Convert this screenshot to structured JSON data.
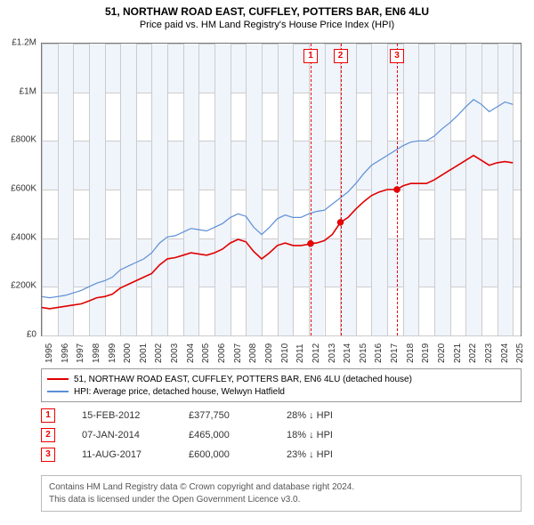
{
  "title": "51, NORTHAW ROAD EAST, CUFFLEY, POTTERS BAR, EN6 4LU",
  "subtitle": "Price paid vs. HM Land Registry's House Price Index (HPI)",
  "chart": {
    "type": "line",
    "x_domain": [
      1995,
      2025.5
    ],
    "y_domain": [
      0,
      1200000
    ],
    "y_ticks": [
      0,
      200000,
      400000,
      600000,
      800000,
      1000000,
      1200000
    ],
    "y_tick_labels": [
      "£0",
      "£200K",
      "£400K",
      "£600K",
      "£800K",
      "£1M",
      "£1.2M"
    ],
    "x_ticks": [
      1995,
      1996,
      1997,
      1998,
      1999,
      2000,
      2001,
      2002,
      2003,
      2004,
      2005,
      2006,
      2007,
      2008,
      2009,
      2010,
      2011,
      2012,
      2013,
      2014,
      2015,
      2016,
      2017,
      2018,
      2019,
      2020,
      2021,
      2022,
      2023,
      2024,
      2025
    ],
    "background_color": "#ffffff",
    "grid_color": "#cccccc",
    "band_color": "#f0f4fb",
    "series": [
      {
        "name": "property",
        "label": "51, NORTHAW ROAD EAST, CUFFLEY, POTTERS BAR, EN6 4LU (detached house)",
        "color": "#e00000",
        "line_width": 1.6,
        "data": [
          [
            1995,
            115000
          ],
          [
            1995.5,
            110000
          ],
          [
            1996,
            115000
          ],
          [
            1996.5,
            120000
          ],
          [
            1997,
            125000
          ],
          [
            1997.5,
            130000
          ],
          [
            1998,
            142000
          ],
          [
            1998.5,
            155000
          ],
          [
            1999,
            160000
          ],
          [
            1999.5,
            170000
          ],
          [
            2000,
            195000
          ],
          [
            2000.5,
            210000
          ],
          [
            2001,
            225000
          ],
          [
            2001.5,
            240000
          ],
          [
            2002,
            255000
          ],
          [
            2002.5,
            290000
          ],
          [
            2003,
            315000
          ],
          [
            2003.5,
            320000
          ],
          [
            2004,
            330000
          ],
          [
            2004.5,
            340000
          ],
          [
            2005,
            335000
          ],
          [
            2005.5,
            330000
          ],
          [
            2006,
            340000
          ],
          [
            2006.5,
            355000
          ],
          [
            2007,
            380000
          ],
          [
            2007.5,
            395000
          ],
          [
            2008,
            385000
          ],
          [
            2008.5,
            345000
          ],
          [
            2009,
            315000
          ],
          [
            2009.5,
            340000
          ],
          [
            2010,
            370000
          ],
          [
            2010.5,
            380000
          ],
          [
            2011,
            370000
          ],
          [
            2011.5,
            370000
          ],
          [
            2012,
            375000
          ],
          [
            2012.12,
            377750
          ],
          [
            2012.5,
            380000
          ],
          [
            2013,
            390000
          ],
          [
            2013.5,
            415000
          ],
          [
            2014.02,
            465000
          ],
          [
            2014.5,
            485000
          ],
          [
            2015,
            520000
          ],
          [
            2015.5,
            550000
          ],
          [
            2016,
            575000
          ],
          [
            2016.5,
            590000
          ],
          [
            2017,
            600000
          ],
          [
            2017.62,
            600000
          ],
          [
            2018,
            615000
          ],
          [
            2018.5,
            625000
          ],
          [
            2019,
            625000
          ],
          [
            2019.5,
            625000
          ],
          [
            2020,
            640000
          ],
          [
            2020.5,
            660000
          ],
          [
            2021,
            680000
          ],
          [
            2021.5,
            700000
          ],
          [
            2022,
            720000
          ],
          [
            2022.5,
            740000
          ],
          [
            2023,
            720000
          ],
          [
            2023.5,
            700000
          ],
          [
            2024,
            710000
          ],
          [
            2024.5,
            715000
          ],
          [
            2025,
            710000
          ]
        ]
      },
      {
        "name": "hpi",
        "label": "HPI: Average price, detached house, Welwyn Hatfield",
        "color": "#5b8fd6",
        "line_width": 1.2,
        "data": [
          [
            1995,
            160000
          ],
          [
            1995.5,
            155000
          ],
          [
            1996,
            160000
          ],
          [
            1996.5,
            165000
          ],
          [
            1997,
            175000
          ],
          [
            1997.5,
            185000
          ],
          [
            1998,
            200000
          ],
          [
            1998.5,
            215000
          ],
          [
            1999,
            225000
          ],
          [
            1999.5,
            240000
          ],
          [
            2000,
            270000
          ],
          [
            2000.5,
            285000
          ],
          [
            2001,
            300000
          ],
          [
            2001.5,
            315000
          ],
          [
            2002,
            340000
          ],
          [
            2002.5,
            380000
          ],
          [
            2003,
            405000
          ],
          [
            2003.5,
            410000
          ],
          [
            2004,
            425000
          ],
          [
            2004.5,
            440000
          ],
          [
            2005,
            435000
          ],
          [
            2005.5,
            430000
          ],
          [
            2006,
            445000
          ],
          [
            2006.5,
            460000
          ],
          [
            2007,
            485000
          ],
          [
            2007.5,
            500000
          ],
          [
            2008,
            490000
          ],
          [
            2008.5,
            445000
          ],
          [
            2009,
            415000
          ],
          [
            2009.5,
            445000
          ],
          [
            2010,
            480000
          ],
          [
            2010.5,
            495000
          ],
          [
            2011,
            485000
          ],
          [
            2011.5,
            485000
          ],
          [
            2012,
            500000
          ],
          [
            2012.5,
            510000
          ],
          [
            2013,
            515000
          ],
          [
            2013.5,
            540000
          ],
          [
            2014,
            565000
          ],
          [
            2014.5,
            590000
          ],
          [
            2015,
            625000
          ],
          [
            2015.5,
            665000
          ],
          [
            2016,
            700000
          ],
          [
            2016.5,
            720000
          ],
          [
            2017,
            740000
          ],
          [
            2017.5,
            760000
          ],
          [
            2018,
            780000
          ],
          [
            2018.5,
            795000
          ],
          [
            2019,
            800000
          ],
          [
            2019.5,
            800000
          ],
          [
            2020,
            820000
          ],
          [
            2020.5,
            850000
          ],
          [
            2021,
            875000
          ],
          [
            2021.5,
            905000
          ],
          [
            2022,
            940000
          ],
          [
            2022.5,
            970000
          ],
          [
            2023,
            950000
          ],
          [
            2023.5,
            920000
          ],
          [
            2024,
            940000
          ],
          [
            2024.5,
            960000
          ],
          [
            2025,
            950000
          ]
        ]
      }
    ],
    "sale_lines": [
      {
        "num": "1",
        "x": 2012.12,
        "y": 377750
      },
      {
        "num": "2",
        "x": 2014.02,
        "y": 465000
      },
      {
        "num": "3",
        "x": 2017.62,
        "y": 600000
      }
    ]
  },
  "legend": {
    "items": [
      {
        "color": "#e00000",
        "label": "51, NORTHAW ROAD EAST, CUFFLEY, POTTERS BAR, EN6 4LU (detached house)"
      },
      {
        "color": "#5b8fd6",
        "label": "HPI: Average price, detached house, Welwyn Hatfield"
      }
    ]
  },
  "sales_table": {
    "rows": [
      {
        "num": "1",
        "date": "15-FEB-2012",
        "price": "£377,750",
        "pct": "28% ↓ HPI"
      },
      {
        "num": "2",
        "date": "07-JAN-2014",
        "price": "£465,000",
        "pct": "18% ↓ HPI"
      },
      {
        "num": "3",
        "date": "11-AUG-2017",
        "price": "£600,000",
        "pct": "23% ↓ HPI"
      }
    ]
  },
  "attribution": {
    "line1": "Contains HM Land Registry data © Crown copyright and database right 2024.",
    "line2": "This data is licensed under the Open Government Licence v3.0."
  }
}
